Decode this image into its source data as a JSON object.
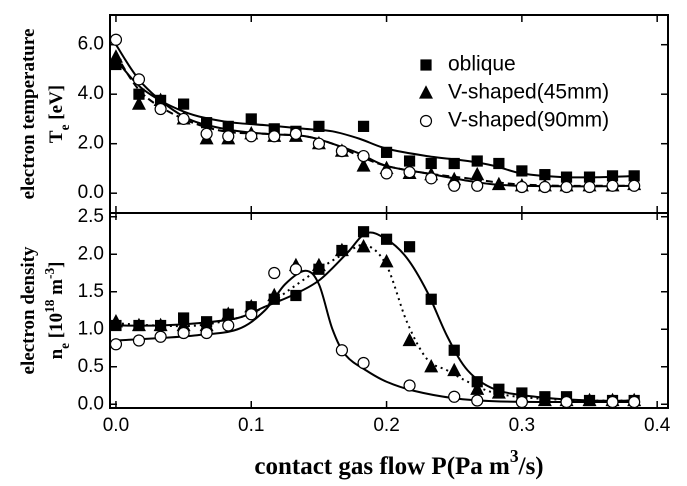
{
  "chart_data": [
    {
      "type": "scatter",
      "ylabel": [
        [
          {
            "text": "electron temperature"
          }
        ],
        [
          {
            "text": "T"
          },
          {
            "text": "e",
            "shift": "sub"
          },
          {
            "text": " [eV]"
          }
        ]
      ],
      "xlim": [
        -0.0044,
        0.408
      ],
      "xticks": [
        0,
        0.1,
        0.2,
        0.3,
        0.4
      ],
      "ylim": [
        -0.8,
        7.2
      ],
      "yticks": [
        {
          "value": 0,
          "label": "0.0"
        },
        {
          "value": 2,
          "label": "2.0"
        },
        {
          "value": 4,
          "label": "4.0"
        },
        {
          "value": 6,
          "label": "6.0"
        }
      ],
      "legend": "upper right",
      "series": [
        {
          "name": "oblique",
          "marker": "square",
          "filled": true,
          "color": "#000000",
          "line_style": "solid",
          "x": [
            0,
            0.017,
            0.033,
            0.05,
            0.067,
            0.083,
            0.1,
            0.117,
            0.133,
            0.15,
            0.183,
            0.2,
            0.217,
            0.233,
            0.25,
            0.267,
            0.283,
            0.3,
            0.317,
            0.333,
            0.35,
            0.367,
            0.383
          ],
          "values": [
            5.2,
            4.0,
            3.75,
            3.6,
            2.85,
            2.7,
            3.0,
            2.6,
            2.5,
            2.7,
            2.7,
            1.65,
            1.3,
            1.2,
            1.2,
            1.3,
            1.2,
            0.9,
            0.75,
            0.65,
            0.65,
            0.7,
            0.7
          ],
          "fit": {
            "x": [
              0,
              0.02,
              0.05,
              0.08,
              0.11,
              0.14,
              0.16,
              0.18,
              0.2,
              0.23,
              0.26,
              0.28,
              0.3,
              0.33,
              0.36,
              0.385
            ],
            "values": [
              5.4,
              4.2,
              3.3,
              2.9,
              2.75,
              2.6,
              2.5,
              2.2,
              1.8,
              1.5,
              1.3,
              1.1,
              0.8,
              0.65,
              0.65,
              0.7
            ]
          }
        },
        {
          "name": "V-shaped(45mm)",
          "marker": "triangle",
          "filled": true,
          "color": "#000000",
          "line_style": "dashed",
          "x": [
            0,
            0.017,
            0.033,
            0.05,
            0.067,
            0.083,
            0.1,
            0.117,
            0.133,
            0.15,
            0.167,
            0.183,
            0.2,
            0.217,
            0.233,
            0.25,
            0.267,
            0.283,
            0.3,
            0.317,
            0.333,
            0.35,
            0.367,
            0.383
          ],
          "values": [
            5.5,
            3.6,
            3.75,
            3.0,
            2.2,
            2.2,
            2.4,
            2.3,
            2.3,
            2.0,
            1.7,
            1.1,
            1.0,
            0.8,
            0.75,
            0.55,
            0.75,
            0.35,
            0.3,
            0.3,
            0.3,
            0.3,
            0.3,
            0.35
          ],
          "fit": {
            "x": [
              0,
              0.02,
              0.05,
              0.08,
              0.11,
              0.14,
              0.16,
              0.18,
              0.2,
              0.23,
              0.26,
              0.28,
              0.3,
              0.33,
              0.36,
              0.385
            ],
            "values": [
              5.6,
              4.0,
              3.0,
              2.5,
              2.4,
              2.3,
              2.0,
              1.5,
              1.1,
              0.8,
              0.6,
              0.45,
              0.35,
              0.3,
              0.3,
              0.3
            ]
          }
        },
        {
          "name": "V-shaped(90mm)",
          "marker": "circle",
          "filled": false,
          "color": "#000000",
          "line_style": "solid",
          "x": [
            0,
            0.017,
            0.033,
            0.05,
            0.067,
            0.083,
            0.1,
            0.117,
            0.133,
            0.15,
            0.167,
            0.183,
            0.2,
            0.217,
            0.233,
            0.25,
            0.267,
            0.3,
            0.317,
            0.333,
            0.35,
            0.367,
            0.383
          ],
          "values": [
            6.2,
            4.6,
            3.4,
            3.0,
            2.4,
            2.3,
            2.3,
            2.3,
            2.4,
            2.0,
            1.7,
            1.5,
            0.8,
            0.85,
            0.6,
            0.3,
            0.3,
            0.25,
            0.25,
            0.25,
            0.25,
            0.3,
            0.3
          ],
          "fit": {
            "x": [
              0,
              0.02,
              0.05,
              0.08,
              0.11,
              0.14,
              0.16,
              0.18,
              0.2,
              0.23,
              0.26,
              0.28,
              0.3,
              0.33,
              0.36,
              0.385
            ],
            "values": [
              6.0,
              4.4,
              3.1,
              2.6,
              2.4,
              2.3,
              2.0,
              1.6,
              1.1,
              0.8,
              0.5,
              0.35,
              0.3,
              0.28,
              0.28,
              0.3
            ]
          }
        }
      ]
    },
    {
      "type": "scatter",
      "ylabel": [
        [
          {
            "text": "electron density"
          }
        ],
        [
          {
            "text": "n"
          },
          {
            "text": "e",
            "shift": "sub"
          },
          {
            "text": " [10"
          },
          {
            "text": "18",
            "shift": "sup"
          },
          {
            "text": " m"
          },
          {
            "text": "-3",
            "shift": "sup"
          },
          {
            "text": "]"
          }
        ]
      ],
      "xlabel": [
        {
          "text": "contact gas flow P(Pa m"
        },
        {
          "text": "3",
          "shift": "sup"
        },
        {
          "text": "/s)"
        }
      ],
      "xlim": [
        -0.0044,
        0.408
      ],
      "xticks": [
        {
          "value": 0,
          "label": "0.0"
        },
        {
          "value": 0.1,
          "label": "0.1"
        },
        {
          "value": 0.2,
          "label": "0.2"
        },
        {
          "value": 0.3,
          "label": "0.3"
        },
        {
          "value": 0.4,
          "label": "0.4"
        }
      ],
      "ylim": [
        -0.05,
        2.55
      ],
      "yticks": [
        {
          "value": 0,
          "label": "0.0"
        },
        {
          "value": 0.5,
          "label": "0.5"
        },
        {
          "value": 1,
          "label": "1.0"
        },
        {
          "value": 1.5,
          "label": "1.5"
        },
        {
          "value": 2,
          "label": "2.0"
        },
        {
          "value": 2.5,
          "label": "2.5"
        }
      ],
      "series": [
        {
          "marker": "square",
          "filled": true,
          "color": "#000000",
          "line_style": "solid",
          "x": [
            0,
            0.017,
            0.033,
            0.05,
            0.067,
            0.083,
            0.1,
            0.117,
            0.133,
            0.15,
            0.167,
            0.183,
            0.2,
            0.217,
            0.233,
            0.25,
            0.267,
            0.283,
            0.3,
            0.317,
            0.333,
            0.35,
            0.367,
            0.383
          ],
          "values": [
            1.05,
            1.05,
            1.05,
            1.15,
            1.1,
            1.2,
            1.3,
            1.4,
            1.45,
            1.8,
            2.05,
            2.3,
            2.2,
            2.1,
            1.4,
            0.72,
            0.3,
            0.2,
            0.15,
            0.1,
            0.1,
            0.05,
            0.05,
            0.05
          ],
          "fit": {
            "x": [
              0,
              0.03,
              0.06,
              0.09,
              0.11,
              0.13,
              0.15,
              0.17,
              0.185,
              0.2,
              0.215,
              0.23,
              0.245,
              0.26,
              0.28,
              0.31,
              0.35,
              0.385
            ],
            "values": [
              1.05,
              1.05,
              1.08,
              1.15,
              1.3,
              1.45,
              1.65,
              2.0,
              2.28,
              2.2,
              1.95,
              1.5,
              0.9,
              0.45,
              0.2,
              0.1,
              0.05,
              0.05
            ]
          }
        },
        {
          "marker": "triangle",
          "filled": true,
          "color": "#000000",
          "line_style": "dotted",
          "x": [
            0,
            0.017,
            0.033,
            0.05,
            0.067,
            0.083,
            0.1,
            0.117,
            0.133,
            0.15,
            0.167,
            0.183,
            0.2,
            0.217,
            0.233,
            0.25,
            0.267,
            0.283,
            0.3,
            0.317,
            0.333,
            0.35,
            0.367,
            0.383
          ],
          "values": [
            1.1,
            1.05,
            1.05,
            1.05,
            1.05,
            1.2,
            1.3,
            1.45,
            1.85,
            1.85,
            2.05,
            2.1,
            1.9,
            0.85,
            0.5,
            0.45,
            0.2,
            0.15,
            0.1,
            0.05,
            0.05,
            0.05,
            0.05,
            0.05
          ],
          "fit": {
            "x": [
              0,
              0.03,
              0.06,
              0.09,
              0.11,
              0.13,
              0.15,
              0.17,
              0.185,
              0.2,
              0.215,
              0.23,
              0.245,
              0.26,
              0.28,
              0.31,
              0.35,
              0.385
            ],
            "values": [
              1.08,
              1.05,
              1.05,
              1.15,
              1.3,
              1.55,
              1.8,
              2.02,
              2.12,
              1.85,
              1.1,
              0.6,
              0.45,
              0.3,
              0.15,
              0.08,
              0.05,
              0.05
            ]
          }
        },
        {
          "marker": "circle",
          "filled": false,
          "color": "#000000",
          "line_style": "solid",
          "x": [
            0,
            0.017,
            0.033,
            0.05,
            0.067,
            0.083,
            0.1,
            0.117,
            0.133,
            0.167,
            0.183,
            0.217,
            0.25,
            0.267,
            0.3,
            0.333,
            0.367,
            0.383
          ],
          "values": [
            0.8,
            0.85,
            0.9,
            0.95,
            0.95,
            1.05,
            1.2,
            1.75,
            1.8,
            0.72,
            0.55,
            0.25,
            0.1,
            0.05,
            0.03,
            0.03,
            0.03,
            0.03
          ],
          "fit": {
            "x": [
              0,
              0.03,
              0.06,
              0.09,
              0.11,
              0.125,
              0.14,
              0.15,
              0.16,
              0.17,
              0.185,
              0.2,
              0.22,
              0.25,
              0.28,
              0.32,
              0.36,
              0.385
            ],
            "values": [
              0.85,
              0.88,
              0.92,
              1.0,
              1.25,
              1.6,
              1.78,
              1.6,
              1.0,
              0.65,
              0.45,
              0.3,
              0.18,
              0.08,
              0.04,
              0.03,
              0.03,
              0.03
            ]
          }
        }
      ]
    }
  ]
}
